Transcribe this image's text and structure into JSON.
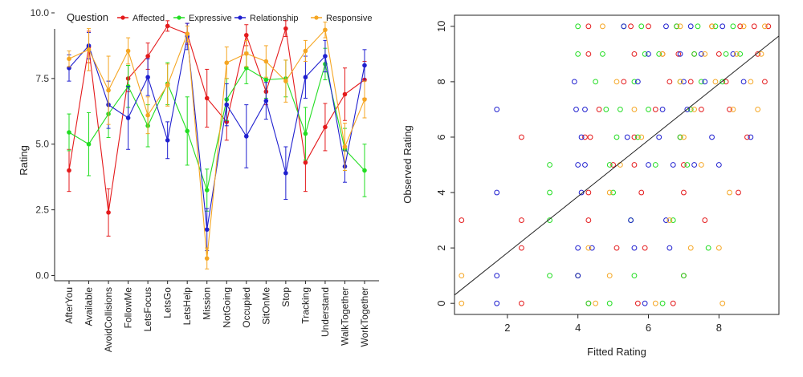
{
  "chart_data": [
    {
      "type": "line",
      "legend_title": "Question",
      "legend_position": "top",
      "ylabel": "Rating",
      "xlabel": "",
      "ylim": [
        -0.2,
        10.0
      ],
      "yticks": [
        0.0,
        2.5,
        5.0,
        7.5,
        10.0
      ],
      "ytick_labels": [
        "0.0",
        "2.5",
        "5.0",
        "7.5",
        "10.0"
      ],
      "grid": false,
      "error_bars": true,
      "categories": [
        "AfterYou",
        "Available",
        "AvoidCollisions",
        "FollowMe",
        "LetsFocus",
        "LetsGo",
        "LetsHelp",
        "Mission",
        "NotGoing",
        "Occupied",
        "SitOnMe",
        "Stop",
        "Tracking",
        "Understand",
        "WalkTogether",
        "WorkTogether"
      ],
      "series": [
        {
          "name": "Affected",
          "color": "#e41a1c",
          "values": [
            4.0,
            8.7,
            2.4,
            7.5,
            8.35,
            9.5,
            9.2,
            6.75,
            5.85,
            9.15,
            7.0,
            9.4,
            4.3,
            5.65,
            6.9,
            7.45
          ],
          "err": [
            0.8,
            0.6,
            0.9,
            0.5,
            0.5,
            0.2,
            0.4,
            1.1,
            0.7,
            0.4,
            0.5,
            0.3,
            1.1,
            0.9,
            1.0,
            0.7
          ]
        },
        {
          "name": "Expressive",
          "color": "#22dd22",
          "values": [
            5.45,
            5.0,
            6.15,
            7.2,
            5.7,
            7.3,
            5.5,
            3.25,
            6.7,
            7.9,
            7.45,
            7.5,
            5.4,
            8.05,
            4.8,
            4.0
          ],
          "err": [
            0.7,
            1.2,
            0.9,
            0.8,
            0.8,
            0.8,
            1.3,
            0.8,
            0.8,
            0.6,
            0.7,
            0.7,
            1.0,
            0.6,
            0.8,
            1.0
          ]
        },
        {
          "name": "Relationship",
          "color": "#1f1fcf",
          "values": [
            7.9,
            8.75,
            6.5,
            6.0,
            7.55,
            5.15,
            9.1,
            1.75,
            6.5,
            5.3,
            6.65,
            3.9,
            7.55,
            8.35,
            4.15,
            8.0
          ],
          "err": [
            0.5,
            0.5,
            0.9,
            1.2,
            0.7,
            0.7,
            0.5,
            0.8,
            0.8,
            1.2,
            0.7,
            1.0,
            0.8,
            0.6,
            0.6,
            0.6
          ]
        },
        {
          "name": "Responsive",
          "color": "#f5a623",
          "values": [
            8.25,
            8.6,
            7.05,
            8.55,
            6.1,
            7.25,
            9.2,
            0.65,
            8.1,
            8.45,
            8.15,
            7.4,
            8.55,
            9.35,
            4.9,
            6.7
          ],
          "err": [
            0.3,
            0.8,
            1.3,
            0.5,
            0.7,
            0.8,
            0.3,
            0.4,
            0.6,
            0.5,
            0.6,
            0.8,
            0.4,
            0.3,
            0.9,
            0.7
          ]
        }
      ]
    },
    {
      "type": "scatter",
      "xlabel": "Fitted Rating",
      "ylabel": "Observed Rating",
      "xlim": [
        0.5,
        9.7
      ],
      "ylim": [
        -0.4,
        10.4
      ],
      "xticks": [
        2,
        4,
        6,
        8
      ],
      "yticks": [
        0,
        2,
        4,
        6,
        8,
        10
      ],
      "grid": false,
      "marker": "open-circle",
      "fit_line": {
        "x": [
          0.5,
          9.7
        ],
        "y": [
          0.3,
          9.65
        ]
      },
      "series": [
        {
          "name": "Affected",
          "color": "#e41a1c",
          "points": [
            [
              0.7,
              3
            ],
            [
              2.4,
              0
            ],
            [
              2.4,
              2
            ],
            [
              2.4,
              3
            ],
            [
              2.4,
              6
            ],
            [
              4.0,
              1
            ],
            [
              4.3,
              3
            ],
            [
              4.3,
              10
            ],
            [
              4.3,
              9
            ],
            [
              4.35,
              6
            ],
            [
              4.3,
              0
            ],
            [
              4.3,
              4
            ],
            [
              4.2,
              6
            ],
            [
              4.6,
              7
            ],
            [
              5.0,
              5
            ],
            [
              5.1,
              2
            ],
            [
              5.3,
              8
            ],
            [
              5.5,
              10
            ],
            [
              5.6,
              9
            ],
            [
              5.6,
              6
            ],
            [
              5.6,
              5
            ],
            [
              5.7,
              0
            ],
            [
              5.8,
              4
            ],
            [
              5.9,
              2
            ],
            [
              6.0,
              10
            ],
            [
              6.2,
              7
            ],
            [
              6.4,
              9
            ],
            [
              6.6,
              8
            ],
            [
              6.7,
              0
            ],
            [
              6.8,
              10
            ],
            [
              6.85,
              9
            ],
            [
              6.9,
              6
            ],
            [
              7.0,
              5
            ],
            [
              7.0,
              4
            ],
            [
              7.0,
              1
            ],
            [
              7.2,
              8
            ],
            [
              7.3,
              9
            ],
            [
              7.5,
              7
            ],
            [
              7.6,
              3
            ],
            [
              7.8,
              10
            ],
            [
              8.0,
              9
            ],
            [
              8.2,
              8
            ],
            [
              8.3,
              7
            ],
            [
              8.6,
              10
            ],
            [
              8.8,
              6
            ],
            [
              9.0,
              10
            ],
            [
              9.1,
              9
            ],
            [
              9.3,
              8
            ],
            [
              9.4,
              10
            ],
            [
              8.55,
              4
            ]
          ]
        },
        {
          "name": "Expressive",
          "color": "#22dd22",
          "points": [
            [
              3.2,
              5
            ],
            [
              3.2,
              4
            ],
            [
              3.2,
              3
            ],
            [
              3.2,
              1
            ],
            [
              4.0,
              10
            ],
            [
              4.0,
              9
            ],
            [
              4.0,
              1
            ],
            [
              4.3,
              0
            ],
            [
              4.5,
              8
            ],
            [
              4.7,
              9
            ],
            [
              4.8,
              7
            ],
            [
              4.9,
              0
            ],
            [
              4.9,
              5
            ],
            [
              5.0,
              4
            ],
            [
              5.1,
              6
            ],
            [
              5.2,
              7
            ],
            [
              5.3,
              10
            ],
            [
              5.5,
              3
            ],
            [
              5.6,
              1
            ],
            [
              5.6,
              8
            ],
            [
              5.7,
              6
            ],
            [
              5.8,
              10
            ],
            [
              5.9,
              9
            ],
            [
              6.0,
              7
            ],
            [
              6.2,
              5
            ],
            [
              6.3,
              9
            ],
            [
              6.4,
              0
            ],
            [
              6.7,
              3
            ],
            [
              6.8,
              10
            ],
            [
              6.9,
              8
            ],
            [
              6.9,
              6
            ],
            [
              7.0,
              1
            ],
            [
              7.1,
              5
            ],
            [
              7.2,
              7
            ],
            [
              7.3,
              9
            ],
            [
              7.4,
              10
            ],
            [
              7.5,
              8
            ],
            [
              7.7,
              2
            ],
            [
              7.9,
              10
            ],
            [
              8.1,
              8
            ],
            [
              8.2,
              9
            ],
            [
              8.4,
              10
            ],
            [
              8.6,
              9
            ]
          ]
        },
        {
          "name": "Relationship",
          "color": "#1f1fcf",
          "points": [
            [
              1.7,
              7
            ],
            [
              1.7,
              4
            ],
            [
              1.7,
              1
            ],
            [
              1.7,
              0
            ],
            [
              3.9,
              8
            ],
            [
              3.95,
              7
            ],
            [
              4.0,
              5
            ],
            [
              4.0,
              2
            ],
            [
              4.0,
              1
            ],
            [
              4.1,
              6
            ],
            [
              4.1,
              4
            ],
            [
              4.2,
              5
            ],
            [
              4.2,
              7
            ],
            [
              4.4,
              2
            ],
            [
              5.3,
              10
            ],
            [
              5.5,
              3
            ],
            [
              5.4,
              6
            ],
            [
              5.7,
              8
            ],
            [
              5.6,
              2
            ],
            [
              5.9,
              0
            ],
            [
              6.0,
              9
            ],
            [
              6.0,
              5
            ],
            [
              6.3,
              6
            ],
            [
              6.4,
              7
            ],
            [
              6.5,
              10
            ],
            [
              6.5,
              3
            ],
            [
              6.6,
              2
            ],
            [
              6.7,
              5
            ],
            [
              6.9,
              9
            ],
            [
              7.0,
              8
            ],
            [
              7.1,
              7
            ],
            [
              7.2,
              10
            ],
            [
              7.3,
              5
            ],
            [
              7.5,
              9
            ],
            [
              7.6,
              8
            ],
            [
              7.8,
              6
            ],
            [
              8.0,
              5
            ],
            [
              8.1,
              10
            ],
            [
              8.4,
              9
            ],
            [
              8.7,
              8
            ],
            [
              8.9,
              6
            ]
          ]
        },
        {
          "name": "Responsive",
          "color": "#f5a623",
          "points": [
            [
              0.7,
              1
            ],
            [
              0.7,
              0
            ],
            [
              4.3,
              2
            ],
            [
              4.5,
              0
            ],
            [
              4.7,
              10
            ],
            [
              4.9,
              4
            ],
            [
              4.9,
              1
            ],
            [
              5.1,
              8
            ],
            [
              5.2,
              5
            ],
            [
              5.6,
              7
            ],
            [
              5.8,
              6
            ],
            [
              6.2,
              0
            ],
            [
              6.4,
              9
            ],
            [
              6.6,
              3
            ],
            [
              6.9,
              10
            ],
            [
              6.9,
              8
            ],
            [
              7.0,
              6
            ],
            [
              7.2,
              2
            ],
            [
              7.3,
              7
            ],
            [
              7.5,
              5
            ],
            [
              7.6,
              9
            ],
            [
              7.8,
              10
            ],
            [
              7.9,
              8
            ],
            [
              8.0,
              2
            ],
            [
              8.1,
              0
            ],
            [
              8.3,
              4
            ],
            [
              8.4,
              7
            ],
            [
              8.5,
              9
            ],
            [
              8.7,
              10
            ],
            [
              8.9,
              8
            ],
            [
              9.1,
              7
            ],
            [
              9.2,
              9
            ],
            [
              9.3,
              10
            ]
          ]
        }
      ]
    }
  ]
}
